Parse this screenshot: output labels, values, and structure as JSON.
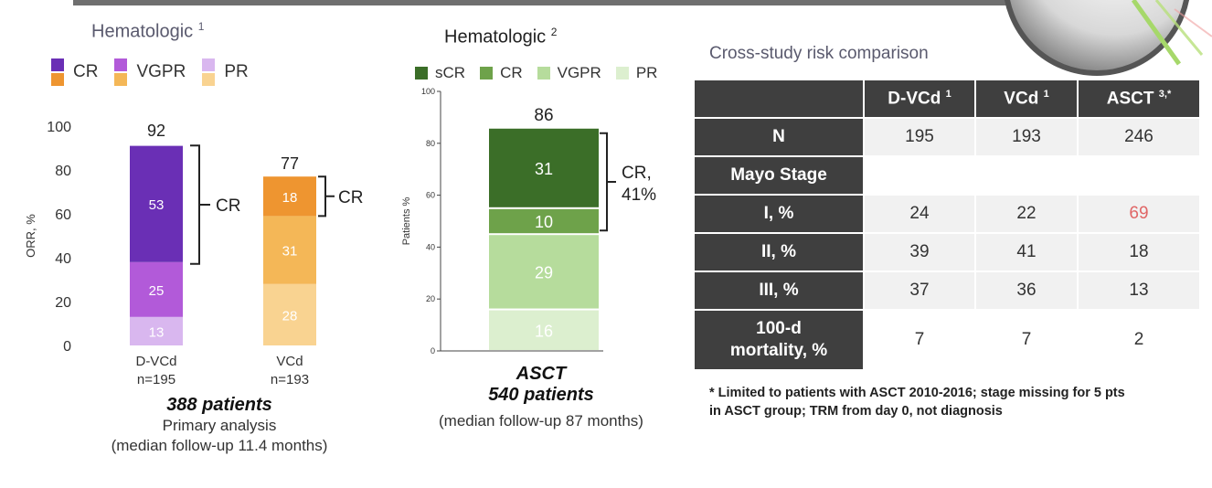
{
  "colors": {
    "purple_cr": "#6a2fb5",
    "purple_vgpr": "#b25ad9",
    "purple_pr": "#d9b7ef",
    "orange_cr": "#ee9530",
    "orange_vgpr": "#f4b757",
    "orange_pr": "#f9d391",
    "green_scr": "#3b6e28",
    "green_cr": "#6ea24a",
    "green_vgpr": "#b6dc9c",
    "green_pr": "#dcefcf",
    "highlight": "#e06666"
  },
  "panel1": {
    "title": "Hematologic",
    "title_sup": "1",
    "legend": [
      {
        "label": "CR"
      },
      {
        "label": "VGPR"
      },
      {
        "label": "PR"
      }
    ],
    "caption_bold": "388 patients",
    "caption_line1": "Primary analysis",
    "caption_line2": "(median follow-up 11.4 months)"
  },
  "panel2": {
    "title": "Hematologic",
    "title_sup": "2",
    "legend": [
      {
        "label": "sCR"
      },
      {
        "label": "CR"
      },
      {
        "label": "VGPR"
      },
      {
        "label": "PR"
      }
    ],
    "caption_bold1": "ASCT",
    "caption_bold2": "540 patients",
    "caption_line": "(median follow-up 87 months)"
  },
  "chart_data": [
    {
      "type": "bar",
      "stacked": true,
      "ylabel": "ORR, %",
      "ylim": [
        0,
        100
      ],
      "yticks": [
        0,
        20,
        40,
        60,
        80,
        100
      ],
      "categories": [
        "D-VCd",
        "VCd"
      ],
      "category_sublabels": [
        "n=195",
        "n=193"
      ],
      "totals": [
        92,
        77
      ],
      "series": [
        {
          "name": "PR",
          "values": [
            13,
            28
          ]
        },
        {
          "name": "VGPR",
          "values": [
            25,
            31
          ]
        },
        {
          "name": "CR",
          "values": [
            53,
            18
          ]
        }
      ],
      "bracket_labels": [
        "CR",
        "CR"
      ]
    },
    {
      "type": "bar",
      "stacked": true,
      "ylabel": "Patients %",
      "ylim": [
        0,
        100
      ],
      "yticks": [
        0,
        20,
        40,
        60,
        80,
        100
      ],
      "categories": [
        "ASCT"
      ],
      "totals": [
        86
      ],
      "series": [
        {
          "name": "PR",
          "values": [
            16
          ]
        },
        {
          "name": "VGPR",
          "values": [
            29
          ]
        },
        {
          "name": "CR",
          "values": [
            10
          ]
        },
        {
          "name": "sCR",
          "values": [
            31
          ]
        }
      ],
      "bracket_label": "CR,",
      "bracket_label2": "41%"
    }
  ],
  "table": {
    "title": "Cross-study risk comparison",
    "columns": [
      {
        "label": "D-VCd",
        "sup": "1"
      },
      {
        "label": "VCd",
        "sup": "1"
      },
      {
        "label": "ASCT",
        "sup": "3,*"
      }
    ],
    "rows": [
      {
        "label": "N",
        "values": [
          "195",
          "193",
          "246"
        ]
      },
      {
        "label": "Mayo Stage",
        "values": [
          "",
          "",
          ""
        ]
      },
      {
        "label": "I, %",
        "values": [
          "24",
          "22",
          "69"
        ]
      },
      {
        "label": "II, %",
        "values": [
          "39",
          "41",
          "18"
        ]
      },
      {
        "label": "III, %",
        "values": [
          "37",
          "36",
          "13"
        ]
      },
      {
        "label": "100-d",
        "label2": "mortality, %",
        "values": [
          "7",
          "7",
          "2"
        ]
      }
    ],
    "footnote_line1": "* Limited to patients with ASCT 2010-2016; stage missing for 5 pts",
    "footnote_line2": "in ASCT group; TRM from day 0, not diagnosis"
  }
}
